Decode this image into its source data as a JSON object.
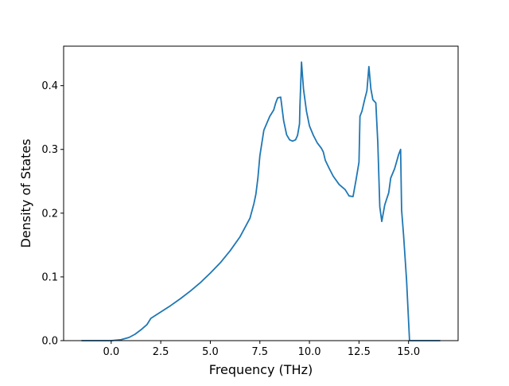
{
  "chart_data": {
    "type": "line",
    "title": "",
    "xlabel": "Frequency (THz)",
    "ylabel": "Density of States",
    "xlim": [
      -2.4,
      17.5
    ],
    "ylim": [
      0.0,
      0.462
    ],
    "xticks": [
      0.0,
      2.5,
      5.0,
      7.5,
      10.0,
      12.5,
      15.0
    ],
    "xtick_labels": [
      "0.0",
      "2.5",
      "5.0",
      "7.5",
      "10.0",
      "12.5",
      "15.0"
    ],
    "yticks": [
      0.0,
      0.1,
      0.2,
      0.3,
      0.4
    ],
    "ytick_labels": [
      "0.0",
      "0.1",
      "0.2",
      "0.3",
      "0.4"
    ],
    "grid": false,
    "legend": "none",
    "colors": {
      "line": "#1f77b4",
      "axes": "#000000",
      "background": "#ffffff"
    },
    "series": [
      {
        "x": [
          -1.5,
          -0.5,
          0.0,
          0.5,
          0.9,
          1.2,
          1.5,
          1.8,
          2.0,
          2.5,
          3.0,
          3.5,
          4.0,
          4.5,
          5.0,
          5.5,
          6.0,
          6.5,
          7.0,
          7.2,
          7.3,
          7.4,
          7.5,
          7.7,
          8.0,
          8.2,
          8.3,
          8.4,
          8.55,
          8.7,
          8.85,
          9.0,
          9.15,
          9.3,
          9.4,
          9.5,
          9.52,
          9.6,
          9.7,
          9.85,
          10.0,
          10.2,
          10.4,
          10.6,
          10.7,
          10.8,
          11.0,
          11.2,
          11.5,
          11.8,
          12.0,
          12.2,
          12.35,
          12.5,
          12.55,
          12.65,
          12.8,
          12.9,
          13.0,
          13.1,
          13.2,
          13.35,
          13.45,
          13.55,
          13.65,
          13.8,
          14.0,
          14.1,
          14.3,
          14.5,
          14.6,
          14.65,
          14.75,
          14.9,
          15.05,
          15.15,
          15.5,
          16.6
        ],
        "y": [
          0.0,
          0.0,
          0.0,
          0.0015,
          0.005,
          0.01,
          0.017,
          0.025,
          0.035,
          0.045,
          0.055,
          0.066,
          0.078,
          0.091,
          0.106,
          0.122,
          0.141,
          0.163,
          0.192,
          0.215,
          0.23,
          0.255,
          0.29,
          0.33,
          0.352,
          0.362,
          0.373,
          0.381,
          0.382,
          0.345,
          0.323,
          0.315,
          0.313,
          0.315,
          0.322,
          0.34,
          0.367,
          0.437,
          0.395,
          0.36,
          0.337,
          0.322,
          0.31,
          0.302,
          0.296,
          0.283,
          0.27,
          0.258,
          0.245,
          0.237,
          0.227,
          0.226,
          0.252,
          0.28,
          0.352,
          0.36,
          0.38,
          0.392,
          0.43,
          0.395,
          0.378,
          0.373,
          0.31,
          0.21,
          0.187,
          0.213,
          0.232,
          0.255,
          0.27,
          0.292,
          0.3,
          0.205,
          0.165,
          0.095,
          0.0,
          0.0,
          0.0,
          0.0
        ]
      }
    ]
  }
}
